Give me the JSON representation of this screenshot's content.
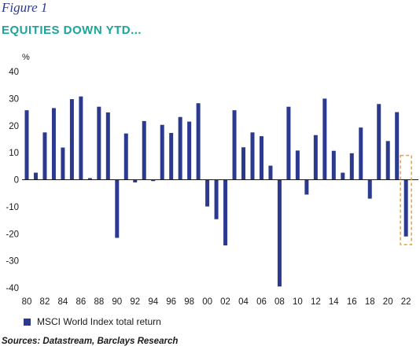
{
  "figure_label": "Figure 1",
  "chart_data": {
    "type": "bar",
    "title": "EQUITIES DOWN YTD...",
    "ylabel": "%",
    "ylim": [
      -40,
      40
    ],
    "yticks": [
      40,
      30,
      20,
      10,
      0,
      -10,
      -20,
      -30,
      -40
    ],
    "x": [
      1980,
      1981,
      1982,
      1983,
      1984,
      1985,
      1986,
      1987,
      1988,
      1989,
      1990,
      1991,
      1992,
      1993,
      1994,
      1995,
      1996,
      1997,
      1998,
      1999,
      2000,
      2001,
      2002,
      2003,
      2004,
      2005,
      2006,
      2007,
      2008,
      2009,
      2010,
      2011,
      2012,
      2013,
      2014,
      2015,
      2016,
      2017,
      2018,
      2019,
      2020,
      2021,
      2022
    ],
    "xtick_labels": [
      "80",
      "82",
      "84",
      "86",
      "88",
      "90",
      "92",
      "94",
      "96",
      "98",
      "00",
      "02",
      "04",
      "06",
      "08",
      "10",
      "12",
      "14",
      "16",
      "18",
      "20",
      "22"
    ],
    "series": [
      {
        "name": "MSCI World Index total return",
        "values": [
          25.7,
          2.6,
          17.5,
          26.5,
          11.9,
          29.8,
          30.8,
          0.6,
          27.0,
          24.9,
          -21.5,
          17.1,
          -1.0,
          21.7,
          -0.5,
          20.3,
          17.3,
          23.2,
          21.5,
          28.3,
          -9.9,
          -14.6,
          -24.3,
          25.7,
          12.0,
          17.5,
          16.1,
          5.2,
          -39.5,
          27.0,
          10.8,
          -5.5,
          16.5,
          30.0,
          10.7,
          2.6,
          9.8,
          19.3,
          -7.0,
          28.0,
          14.3,
          25.0,
          -21.0
        ]
      }
    ],
    "highlight_index": 42,
    "colors": {
      "bar": "#2b3a8f",
      "highlight_box": "#f0a030",
      "title": "#1aa59a",
      "figure_label": "#2b3a8f"
    }
  },
  "source": "Sources: Datastream, Barclays Research"
}
